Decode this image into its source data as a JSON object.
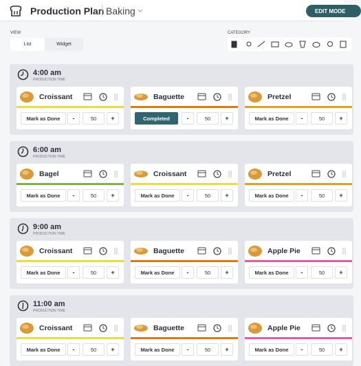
{
  "header": {
    "title": "Production Plan",
    "subtitle": "Baking",
    "button": "EDIT MODE"
  },
  "view": {
    "label": "VIEW",
    "options": [
      "List",
      "Widget"
    ]
  },
  "category": {
    "label": "CATEGORY"
  },
  "controls": {
    "minus": "-",
    "plus": "+"
  },
  "slots": [
    {
      "time": "4:00 am",
      "caption": "PRODUCTION TIME",
      "items": [
        {
          "name": "Croissant",
          "color": "#efdc3a",
          "action": "Mark as Done",
          "done": false,
          "quantity": 50
        },
        {
          "name": "Baguette",
          "color": "#e07a12",
          "action": "Completed",
          "done": true,
          "quantity": 50
        },
        {
          "name": "Pretzel",
          "color": "#e0a21f",
          "action": "Mark as Done",
          "done": false,
          "quantity": 50
        }
      ]
    },
    {
      "time": "6:00 am",
      "caption": "PRODUCTION TIME",
      "items": [
        {
          "name": "Bagel",
          "color": "#7db444",
          "action": "Mark as Done",
          "done": false,
          "quantity": 50
        },
        {
          "name": "Croissant",
          "color": "#efdc3a",
          "action": "Mark as Done",
          "done": false,
          "quantity": 50
        },
        {
          "name": "Pretzel",
          "color": "#e0a21f",
          "action": "Mark as Done",
          "done": false,
          "quantity": 50
        }
      ]
    },
    {
      "time": "9:00 am",
      "caption": "PRODUCTION TIME",
      "items": [
        {
          "name": "Croissant",
          "color": "#efdc3a",
          "action": "Mark as Done",
          "done": false,
          "quantity": 50
        },
        {
          "name": "Baguette",
          "color": "#e07a12",
          "action": "Mark as Done",
          "done": false,
          "quantity": 50
        },
        {
          "name": "Apple Pie",
          "color": "#e85aa8",
          "action": "Mark as Done",
          "done": false,
          "quantity": 50
        }
      ]
    },
    {
      "time": "11:00 am",
      "caption": "PRODUCTION TIME",
      "items": [
        {
          "name": "Croissant",
          "color": "#efdc3a",
          "action": "Mark as Done",
          "done": false,
          "quantity": 50
        },
        {
          "name": "Baguette",
          "color": "#e07a12",
          "action": "Mark as Done",
          "done": false,
          "quantity": 50
        },
        {
          "name": "Apple Pie",
          "color": "#e85aa8",
          "action": "Mark as Done",
          "done": false,
          "quantity": 50
        }
      ]
    }
  ]
}
